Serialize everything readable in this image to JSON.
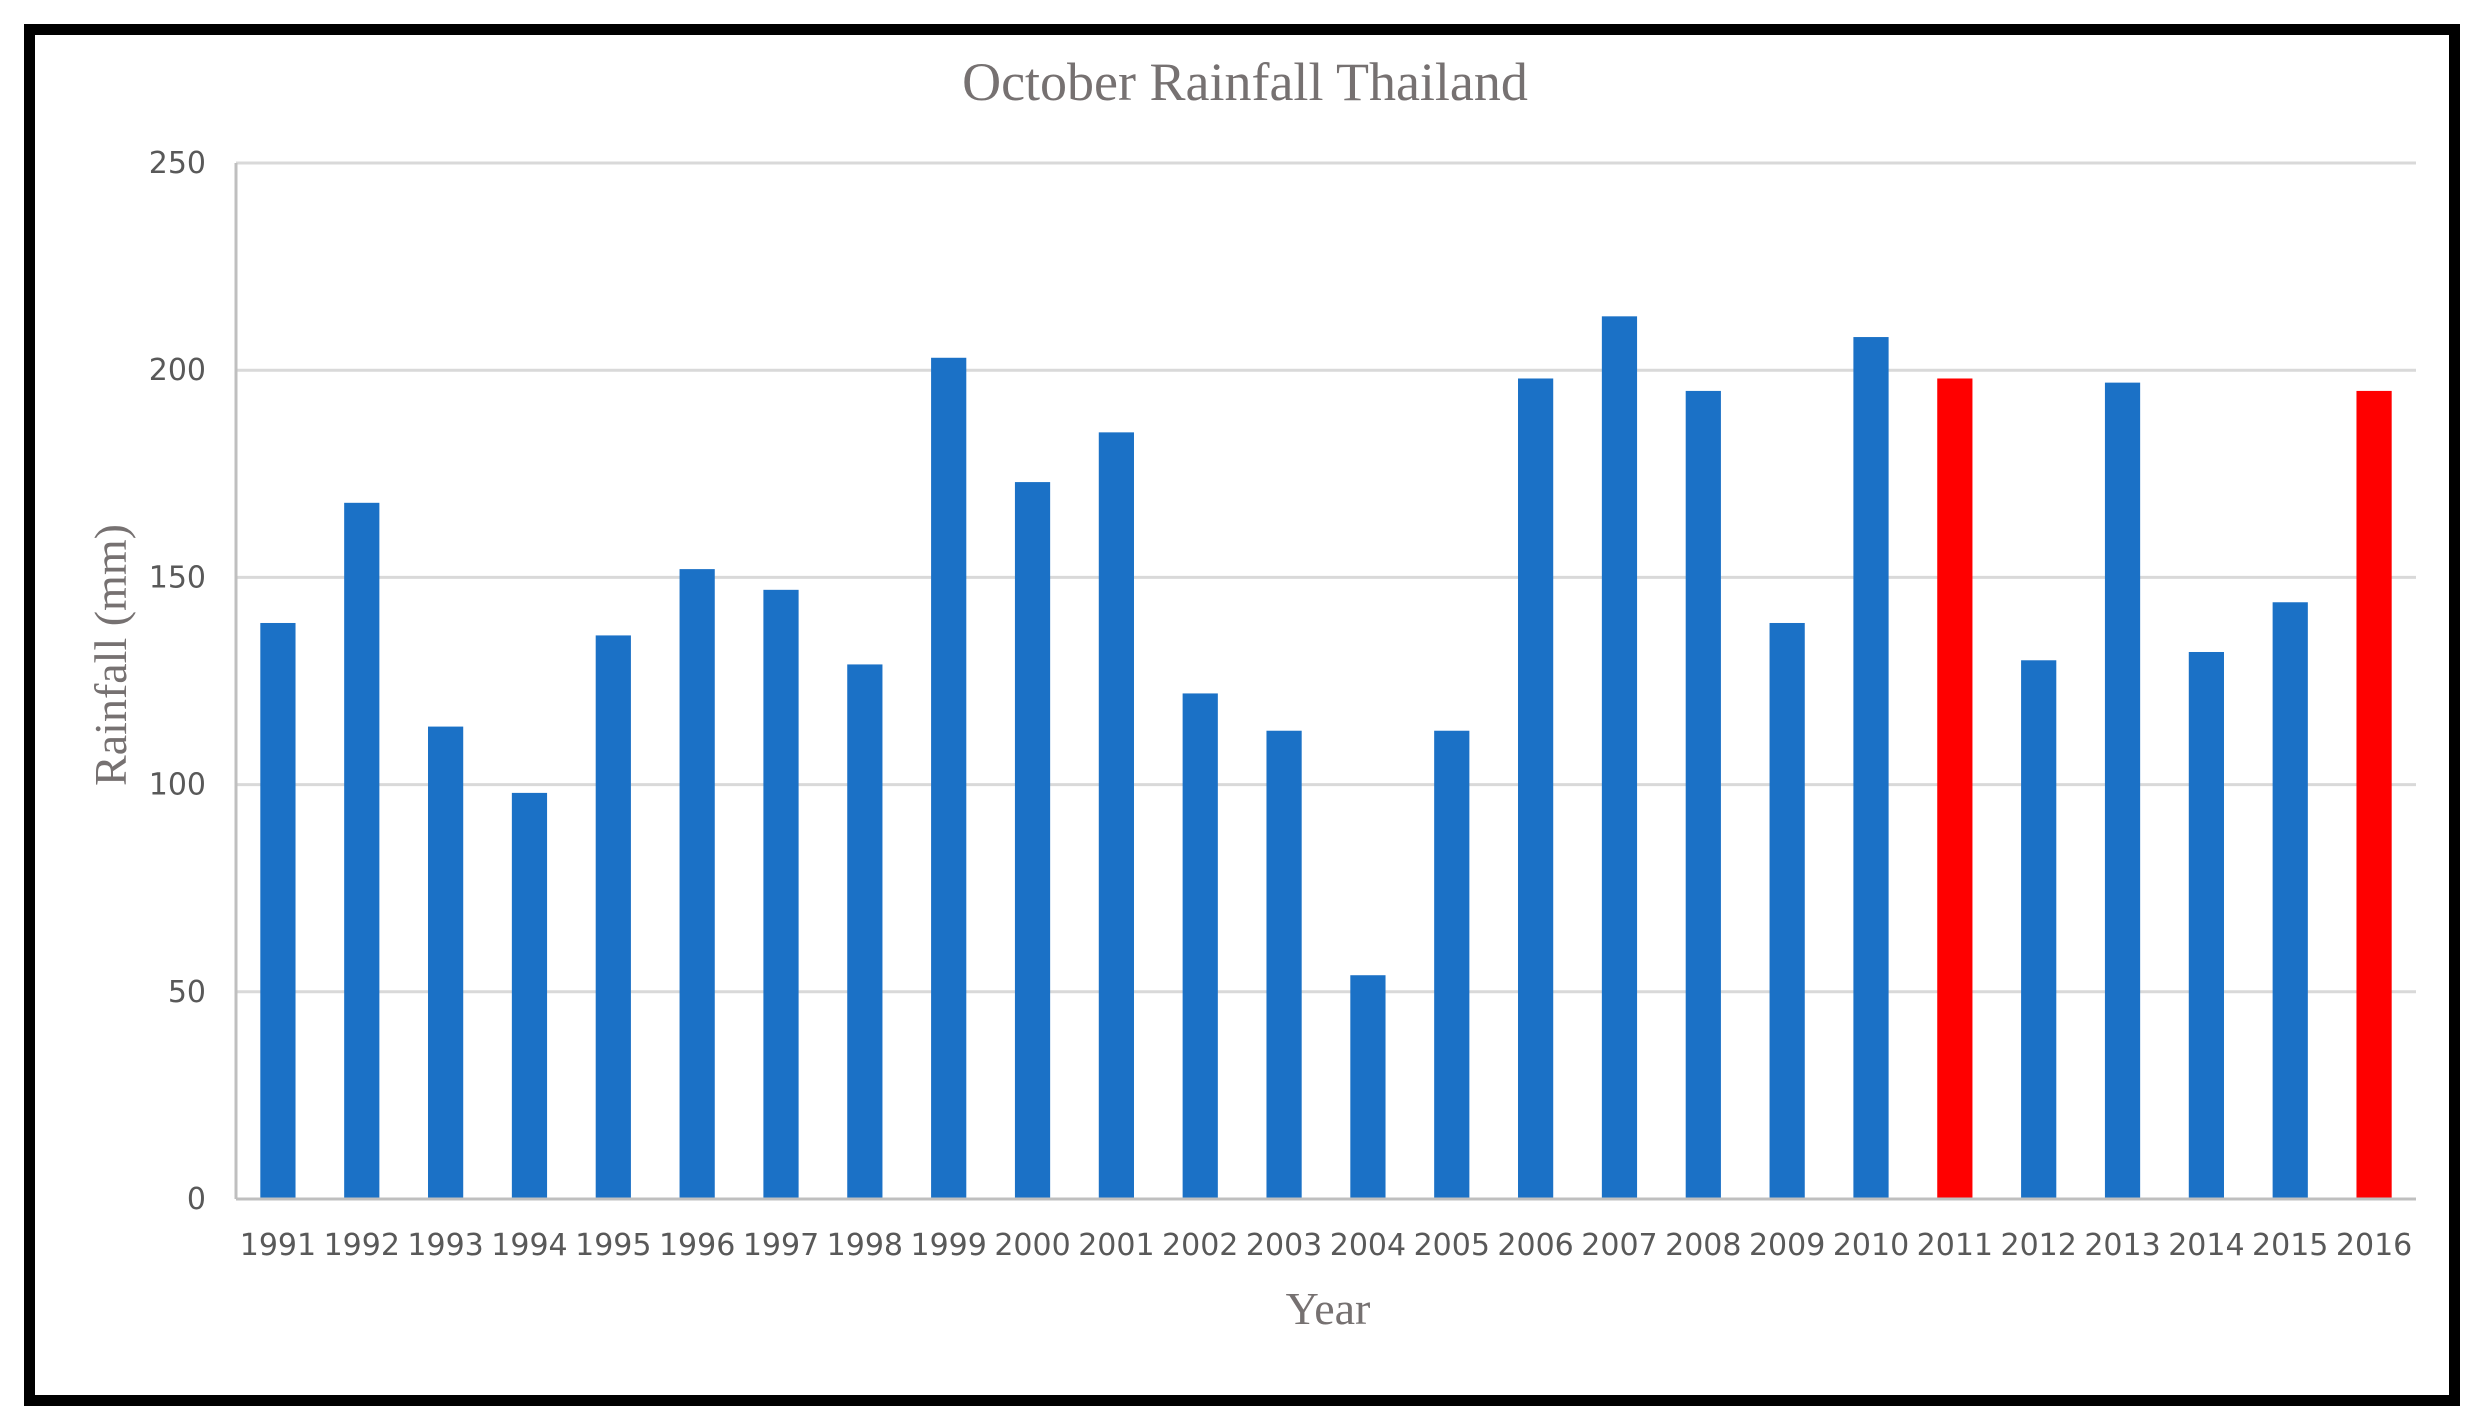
{
  "chart_data": {
    "type": "bar",
    "title": "October Rainfall Thailand",
    "xlabel": "Year",
    "ylabel": "Rainfall (mm)",
    "ylim": [
      0,
      250
    ],
    "yticks": [
      0,
      50,
      100,
      150,
      200,
      250
    ],
    "grid": true,
    "categories": [
      "1991",
      "1992",
      "1993",
      "1994",
      "1995",
      "1996",
      "1997",
      "1998",
      "1999",
      "2000",
      "2001",
      "2002",
      "2003",
      "2004",
      "2005",
      "2006",
      "2007",
      "2008",
      "2009",
      "2010",
      "2011",
      "2012",
      "2013",
      "2014",
      "2015",
      "2016"
    ],
    "values": [
      139,
      168,
      114,
      98,
      136,
      152,
      147,
      129,
      203,
      173,
      185,
      122,
      113,
      54,
      113,
      198,
      213,
      195,
      139,
      208,
      198,
      130,
      197,
      132,
      144,
      195
    ],
    "highlight_years": [
      "2011",
      "2016"
    ],
    "colors": {
      "default": "#1B71C6",
      "highlight": "#FF0000"
    }
  }
}
